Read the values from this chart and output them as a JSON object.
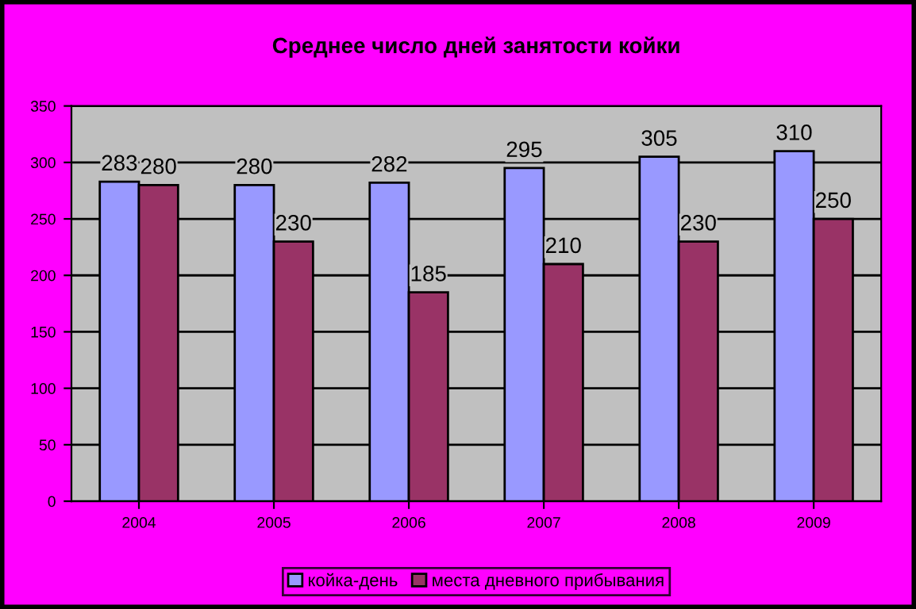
{
  "chart_data": {
    "type": "bar",
    "title": "Среднее число дней занятости койки",
    "categories": [
      "2004",
      "2005",
      "2006",
      "2007",
      "2008",
      "2009"
    ],
    "series": [
      {
        "name": "койка-день",
        "color": "#9999ff",
        "values": [
          283,
          280,
          282,
          295,
          305,
          310
        ]
      },
      {
        "name": "места дневного прибывания",
        "color": "#993366",
        "values": [
          280,
          230,
          185,
          210,
          230,
          250
        ]
      }
    ],
    "ylim": [
      0,
      350
    ],
    "yticks": [
      0,
      50,
      100,
      150,
      200,
      250,
      300,
      350
    ],
    "grid": "y",
    "legend": "bottom",
    "data_labels": true
  }
}
